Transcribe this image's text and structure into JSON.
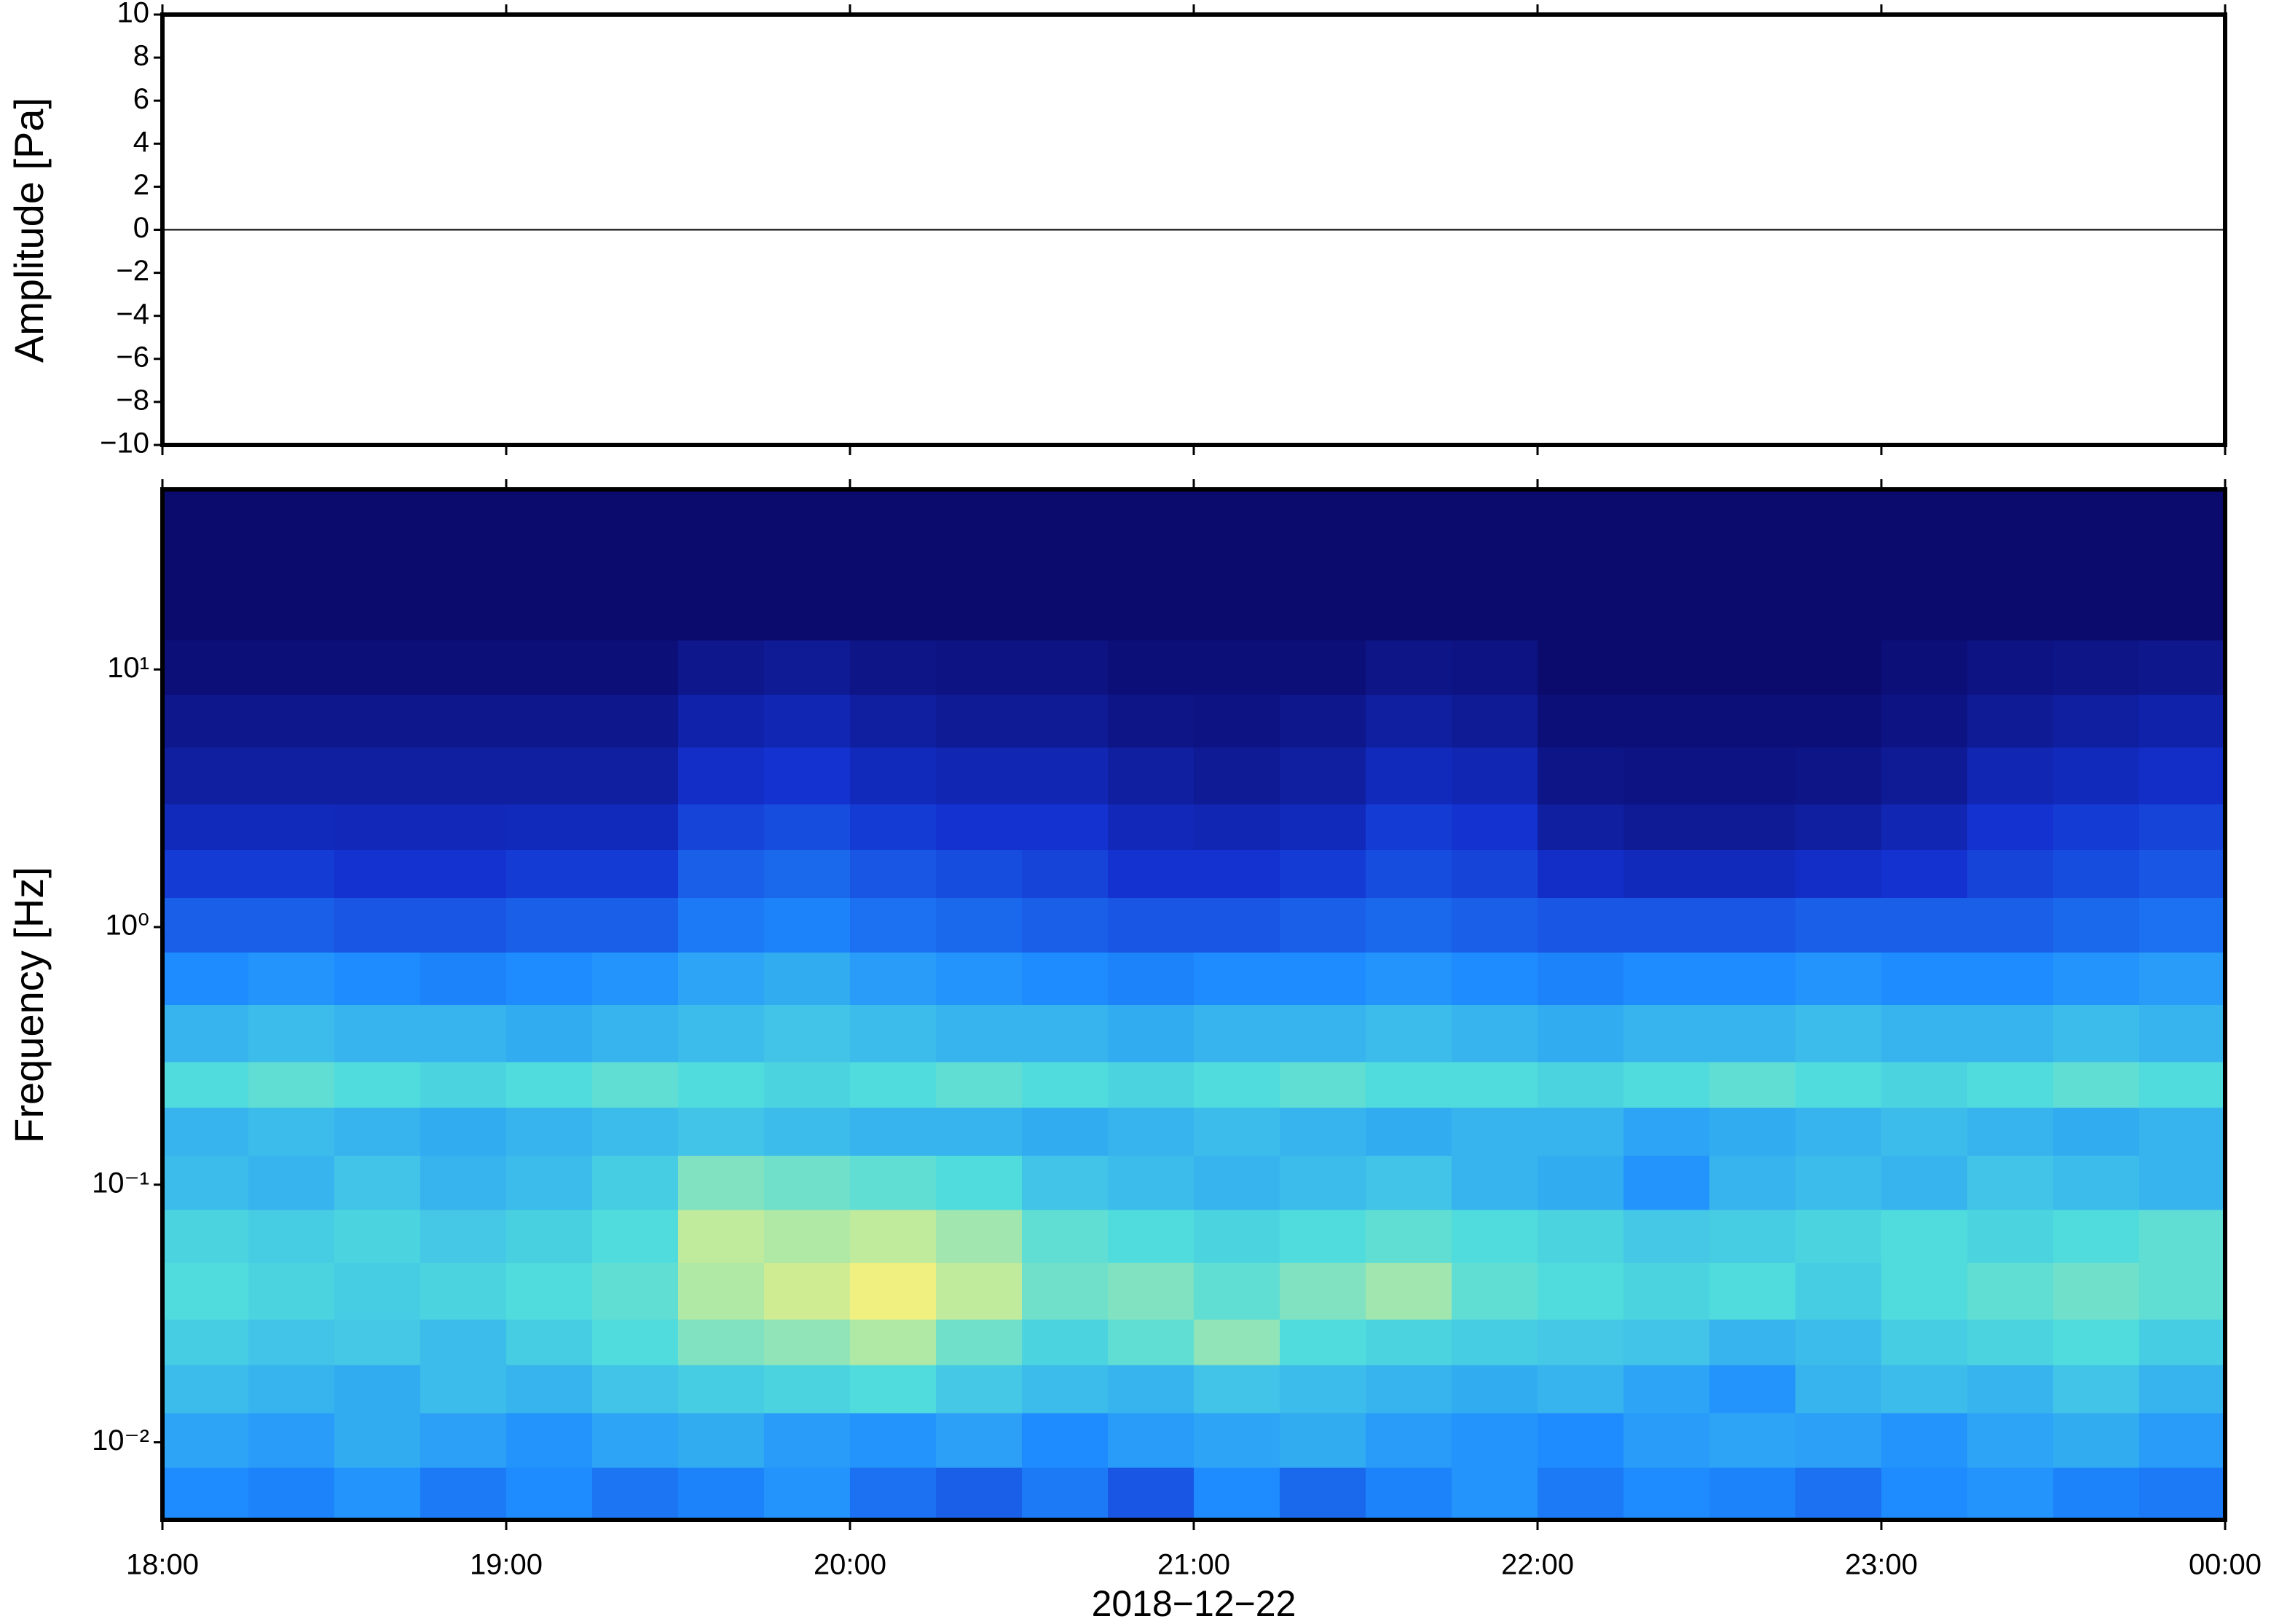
{
  "chart_data": [
    {
      "type": "line",
      "ylabel": "Amplitude [Pa]",
      "x": [
        18,
        24
      ],
      "values": [
        0,
        0
      ],
      "color": "#000000",
      "xlim": [
        18,
        24
      ],
      "ylim": [
        -10,
        10
      ],
      "yticks": [
        {
          "value": -10,
          "label": "−10"
        },
        {
          "value": -8,
          "label": "−8"
        },
        {
          "value": -6,
          "label": "−6"
        },
        {
          "value": -4,
          "label": "−4"
        },
        {
          "value": -2,
          "label": "−2"
        },
        0,
        2,
        4,
        6,
        8,
        10
      ]
    },
    {
      "type": "heatmap",
      "ylabel": "Frequency [Hz]",
      "xlabel": "2018−12−22",
      "log_y": true,
      "xlim": [
        18,
        24
      ],
      "xticks": [
        {
          "value": 18,
          "label": "18:00"
        },
        {
          "value": 19,
          "label": "19:00"
        },
        {
          "value": 20,
          "label": "20:00"
        },
        {
          "value": 21,
          "label": "21:00"
        },
        {
          "value": 22,
          "label": "22:00"
        },
        {
          "value": 23,
          "label": "23:00"
        },
        {
          "value": 24,
          "label": "00:00"
        }
      ],
      "ylim": [
        0.005,
        50
      ],
      "yticks": [
        {
          "value": 0.01,
          "label": "10⁻²"
        },
        {
          "value": 0.1,
          "label": "10⁻¹"
        },
        {
          "value": 1,
          "label": "10⁰"
        },
        {
          "value": 10,
          "label": "10¹"
        }
      ],
      "zlim": [
        0,
        1
      ],
      "colormap": [
        "#0b0b6e",
        "#1432d0",
        "#1e8cff",
        "#50dcdc",
        "#f0f080",
        "#ff9040"
      ],
      "x_edges": [
        18,
        18.25,
        18.5,
        18.75,
        19,
        19.25,
        19.5,
        19.75,
        20,
        20.25,
        20.5,
        20.75,
        21,
        21.25,
        21.5,
        21.75,
        22,
        22.25,
        22.5,
        22.75,
        23,
        23.25,
        23.5,
        23.75,
        24
      ],
      "y_edges": [
        0.005,
        0.008,
        0.013,
        0.02,
        0.03,
        0.05,
        0.08,
        0.13,
        0.2,
        0.3,
        0.5,
        0.8,
        1.3,
        2,
        3,
        5,
        8,
        13,
        20,
        50
      ],
      "values": [
        [
          0.4,
          0.38,
          0.42,
          0.36,
          0.4,
          0.35,
          0.38,
          0.42,
          0.34,
          0.3,
          0.36,
          0.28,
          0.4,
          0.32,
          0.38,
          0.42,
          0.36,
          0.4,
          0.38,
          0.34,
          0.4,
          0.42,
          0.38,
          0.36
        ],
        [
          0.46,
          0.44,
          0.48,
          0.45,
          0.42,
          0.46,
          0.48,
          0.44,
          0.42,
          0.45,
          0.4,
          0.44,
          0.46,
          0.48,
          0.44,
          0.42,
          0.4,
          0.44,
          0.46,
          0.45,
          0.42,
          0.46,
          0.48,
          0.44
        ],
        [
          0.52,
          0.5,
          0.48,
          0.52,
          0.5,
          0.54,
          0.56,
          0.58,
          0.6,
          0.55,
          0.52,
          0.5,
          0.54,
          0.52,
          0.5,
          0.48,
          0.5,
          0.46,
          0.42,
          0.5,
          0.52,
          0.5,
          0.54,
          0.5
        ],
        [
          0.56,
          0.54,
          0.55,
          0.52,
          0.56,
          0.6,
          0.66,
          0.68,
          0.72,
          0.64,
          0.58,
          0.62,
          0.68,
          0.6,
          0.58,
          0.56,
          0.55,
          0.54,
          0.5,
          0.52,
          0.56,
          0.58,
          0.6,
          0.56
        ],
        [
          0.6,
          0.58,
          0.56,
          0.58,
          0.6,
          0.62,
          0.72,
          0.76,
          0.8,
          0.74,
          0.64,
          0.66,
          0.62,
          0.66,
          0.7,
          0.62,
          0.6,
          0.58,
          0.6,
          0.56,
          0.6,
          0.62,
          0.64,
          0.62
        ],
        [
          0.58,
          0.56,
          0.58,
          0.55,
          0.57,
          0.6,
          0.74,
          0.72,
          0.74,
          0.7,
          0.62,
          0.6,
          0.58,
          0.6,
          0.62,
          0.6,
          0.58,
          0.55,
          0.56,
          0.58,
          0.6,
          0.58,
          0.6,
          0.62
        ],
        [
          0.52,
          0.5,
          0.54,
          0.5,
          0.52,
          0.56,
          0.66,
          0.64,
          0.62,
          0.6,
          0.54,
          0.52,
          0.5,
          0.52,
          0.54,
          0.5,
          0.48,
          0.42,
          0.5,
          0.52,
          0.5,
          0.54,
          0.52,
          0.5
        ],
        [
          0.5,
          0.52,
          0.5,
          0.48,
          0.5,
          0.52,
          0.54,
          0.52,
          0.5,
          0.5,
          0.48,
          0.5,
          0.52,
          0.5,
          0.48,
          0.5,
          0.5,
          0.46,
          0.48,
          0.5,
          0.52,
          0.5,
          0.48,
          0.5
        ],
        [
          0.6,
          0.62,
          0.6,
          0.58,
          0.6,
          0.62,
          0.6,
          0.58,
          0.6,
          0.62,
          0.6,
          0.58,
          0.6,
          0.62,
          0.6,
          0.6,
          0.58,
          0.6,
          0.62,
          0.6,
          0.58,
          0.6,
          0.62,
          0.6
        ],
        [
          0.5,
          0.52,
          0.5,
          0.5,
          0.48,
          0.5,
          0.52,
          0.54,
          0.52,
          0.5,
          0.5,
          0.48,
          0.5,
          0.5,
          0.52,
          0.5,
          0.48,
          0.5,
          0.5,
          0.52,
          0.5,
          0.5,
          0.52,
          0.5
        ],
        [
          0.4,
          0.42,
          0.4,
          0.38,
          0.4,
          0.42,
          0.46,
          0.48,
          0.44,
          0.42,
          0.4,
          0.38,
          0.4,
          0.4,
          0.42,
          0.4,
          0.38,
          0.4,
          0.4,
          0.42,
          0.4,
          0.4,
          0.42,
          0.44
        ],
        [
          0.3,
          0.3,
          0.28,
          0.28,
          0.3,
          0.3,
          0.36,
          0.38,
          0.34,
          0.32,
          0.3,
          0.28,
          0.28,
          0.3,
          0.32,
          0.3,
          0.28,
          0.28,
          0.28,
          0.3,
          0.3,
          0.3,
          0.32,
          0.34
        ],
        [
          0.22,
          0.22,
          0.2,
          0.2,
          0.22,
          0.22,
          0.3,
          0.32,
          0.28,
          0.26,
          0.24,
          0.2,
          0.2,
          0.22,
          0.26,
          0.24,
          0.18,
          0.16,
          0.16,
          0.18,
          0.2,
          0.24,
          0.26,
          0.28
        ],
        [
          0.16,
          0.16,
          0.15,
          0.15,
          0.16,
          0.16,
          0.24,
          0.26,
          0.22,
          0.2,
          0.2,
          0.15,
          0.14,
          0.16,
          0.22,
          0.2,
          0.1,
          0.08,
          0.08,
          0.1,
          0.14,
          0.2,
          0.22,
          0.24
        ],
        [
          0.1,
          0.1,
          0.1,
          0.1,
          0.1,
          0.1,
          0.18,
          0.2,
          0.16,
          0.14,
          0.14,
          0.1,
          0.08,
          0.1,
          0.16,
          0.14,
          0.05,
          0.04,
          0.04,
          0.05,
          0.08,
          0.14,
          0.16,
          0.18
        ],
        [
          0.06,
          0.06,
          0.06,
          0.06,
          0.06,
          0.06,
          0.12,
          0.14,
          0.1,
          0.08,
          0.08,
          0.05,
          0.04,
          0.06,
          0.1,
          0.08,
          0.02,
          0.02,
          0.02,
          0.02,
          0.04,
          0.08,
          0.1,
          0.12
        ],
        [
          0.02,
          0.02,
          0.02,
          0.02,
          0.02,
          0.02,
          0.06,
          0.08,
          0.05,
          0.04,
          0.04,
          0.02,
          0.02,
          0.02,
          0.05,
          0.04,
          0,
          0,
          0,
          0,
          0.02,
          0.04,
          0.05,
          0.06
        ],
        [
          0,
          0,
          0,
          0,
          0,
          0,
          0,
          0,
          0,
          0,
          0,
          0,
          0,
          0,
          0,
          0,
          0,
          0,
          0,
          0,
          0,
          0,
          0,
          0
        ],
        [
          0,
          0,
          0,
          0,
          0,
          0,
          0,
          0,
          0,
          0,
          0,
          0,
          0,
          0,
          0,
          0,
          0,
          0,
          0,
          0,
          0,
          0,
          0,
          0
        ]
      ]
    }
  ]
}
